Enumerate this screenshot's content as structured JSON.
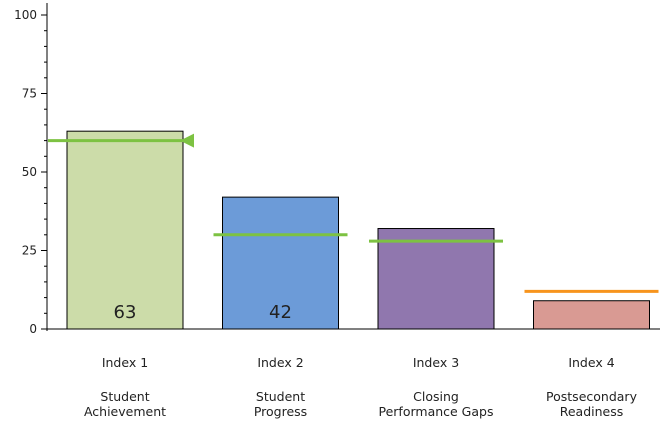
{
  "chart_data": {
    "type": "bar",
    "ylim": [
      0,
      100
    ],
    "yticks": [
      0,
      25,
      50,
      75,
      100
    ],
    "grid": false,
    "categories": [
      {
        "index": "Index 1",
        "name": [
          "Student",
          "Achievement"
        ],
        "value": 63,
        "target": 60,
        "color": "#ccdca9",
        "target_color": "#7dc242",
        "value_label": "63",
        "target_marker": "triangle"
      },
      {
        "index": "Index 2",
        "name": [
          "Student",
          "Progress"
        ],
        "value": 42,
        "target": 30,
        "color": "#6c9bd8",
        "target_color": "#7dc242",
        "value_label": "42",
        "target_marker": "none"
      },
      {
        "index": "Index 3",
        "name": [
          "Closing",
          "Performance Gaps"
        ],
        "value": 32,
        "target": 28,
        "color": "#9077ae",
        "target_color": "#7dc242",
        "value_label": "",
        "target_marker": "none"
      },
      {
        "index": "Index 4",
        "name": [
          "Postsecondary",
          "Readiness"
        ],
        "value": 9,
        "target": 12,
        "color": "#d99a93",
        "target_color": "#f7941d",
        "value_label": "",
        "target_marker": "none"
      }
    ]
  }
}
